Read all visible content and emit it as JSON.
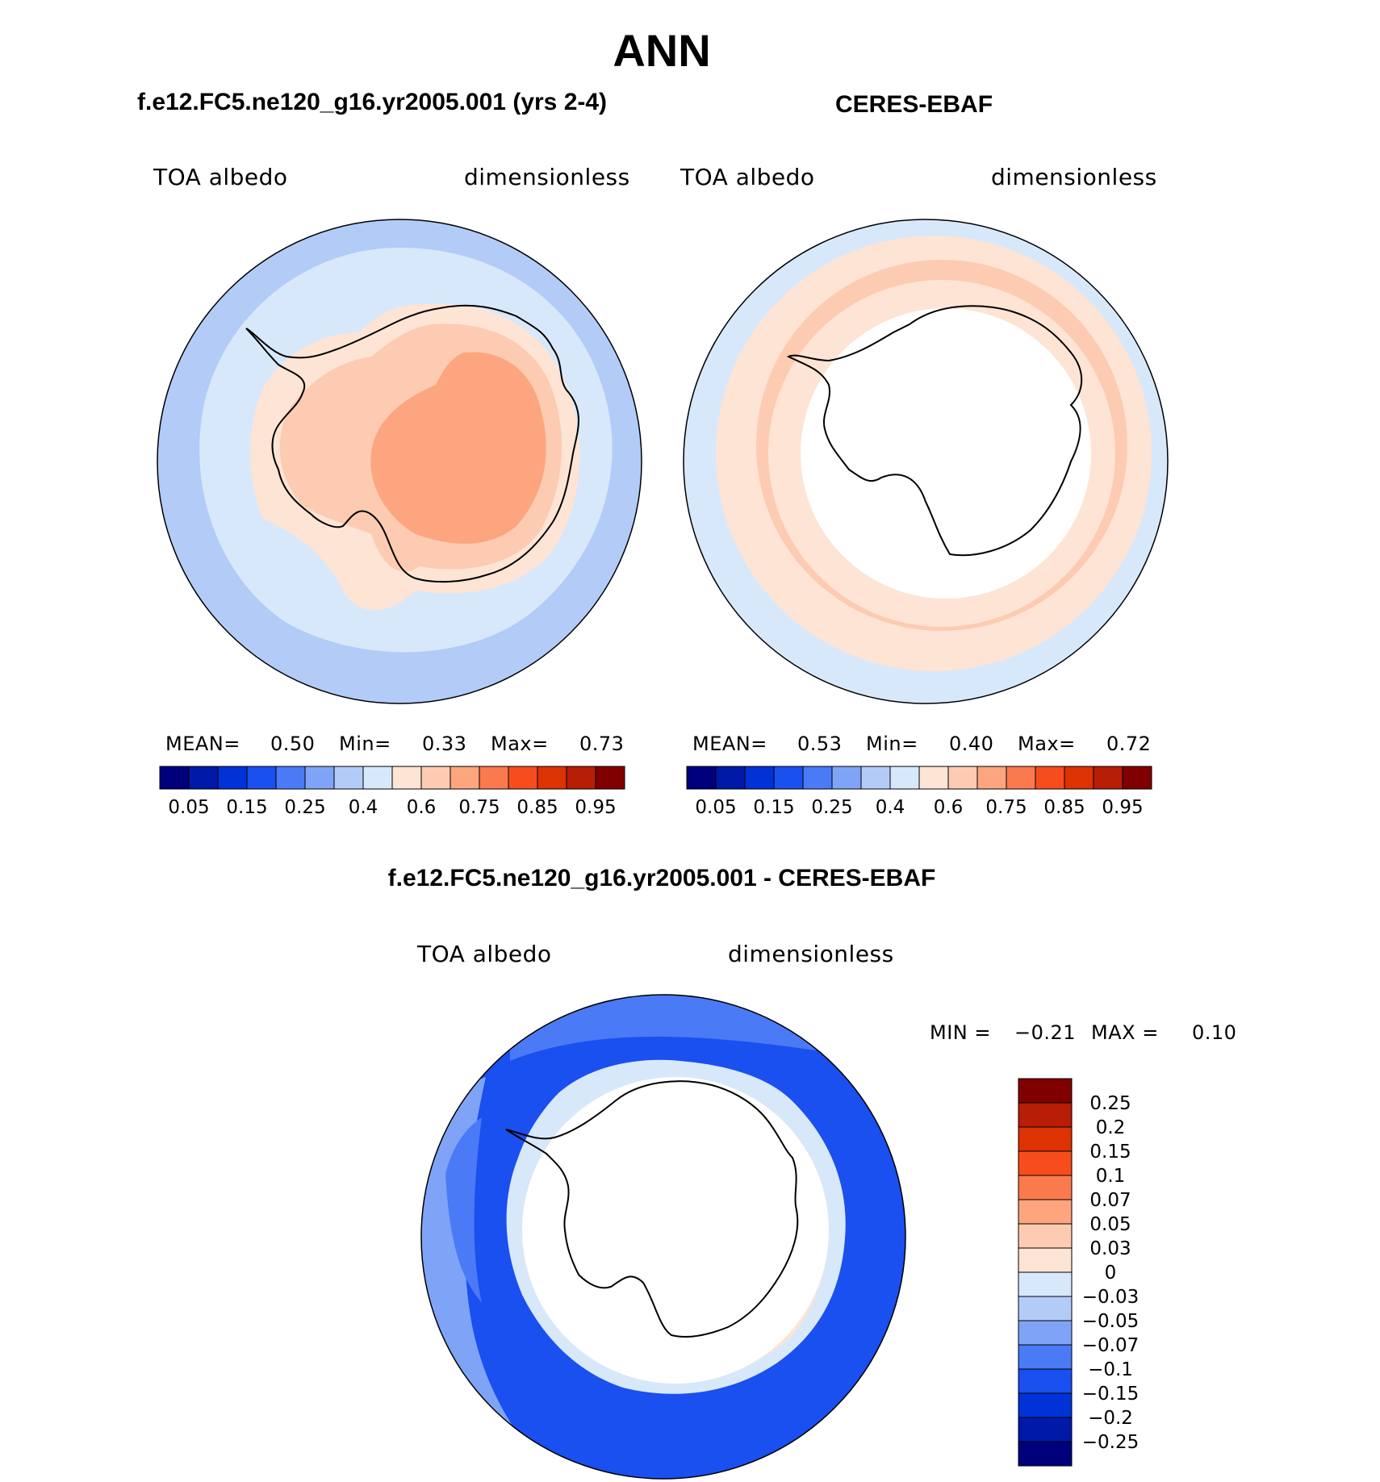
{
  "title": "ANN",
  "panels": [
    {
      "title": "f.e12.FC5.ne120_g16.yr2005.001 (yrs 2-4)",
      "variable": "TOA albedo",
      "units": "dimensionless",
      "stats": {
        "mean_label": "MEAN=",
        "mean": "0.50",
        "min_label": "Min=",
        "min": "0.33",
        "max_label": "Max=",
        "max": "0.73"
      }
    },
    {
      "title": "CERES-EBAF",
      "variable": "TOA albedo",
      "units": "dimensionless",
      "stats": {
        "mean_label": "MEAN=",
        "mean": "0.53",
        "min_label": "Min=",
        "min": "0.40",
        "max_label": "Max=",
        "max": "0.72"
      }
    },
    {
      "title": "f.e12.FC5.ne120_g16.yr2005.001 - CERES-EBAF",
      "variable": "TOA albedo",
      "units": "dimensionless",
      "stats": {
        "min_label": "MIN =",
        "min": "−0.21",
        "max_label": "MAX =",
        "max": "0.10"
      }
    }
  ],
  "colorbar_top": {
    "colors": [
      "#00007d",
      "#0019a8",
      "#0032d8",
      "#1a4ff0",
      "#4a7af5",
      "#7fa4f7",
      "#b3cbf7",
      "#d8e8fb",
      "#fde4d4",
      "#fccbb2",
      "#fca57f",
      "#fa7a4e",
      "#f74d1c",
      "#dd3202",
      "#b81d06",
      "#800000"
    ],
    "tick_labels": [
      "0.05",
      "0.15",
      "0.25",
      "0.4",
      "0.6",
      "0.75",
      "0.85",
      "0.95"
    ]
  },
  "colorbar_diff": {
    "colors": [
      "#00007d",
      "#0019a8",
      "#0032d8",
      "#1a4ff0",
      "#4a7af5",
      "#7fa4f7",
      "#b3cbf7",
      "#d8e8fb",
      "#fde4d4",
      "#fccbb2",
      "#fca57f",
      "#fa7a4e",
      "#f74d1c",
      "#dd3202",
      "#b81d06",
      "#800000"
    ],
    "tick_labels": [
      "0.25",
      "0.2",
      "0.15",
      "0.1",
      "0.07",
      "0.05",
      "0.03",
      "0",
      "−0.03",
      "−0.05",
      "−0.07",
      "−0.1",
      "−0.15",
      "−0.2",
      "−0.25"
    ]
  },
  "chart_data": [
    {
      "type": "heatmap",
      "title": "f.e12.FC5.ne120_g16.yr2005.001 (yrs 2-4)",
      "projection": "south polar stereographic",
      "variable": "TOA albedo",
      "units": "dimensionless",
      "mean": 0.5,
      "min": 0.33,
      "max": 0.73,
      "contour_levels": [
        0.05,
        0.1,
        0.15,
        0.2,
        0.25,
        0.3,
        0.35,
        0.4,
        0.5,
        0.6,
        0.65,
        0.7,
        0.75,
        0.8,
        0.85,
        0.9,
        0.95
      ]
    },
    {
      "type": "heatmap",
      "title": "CERES-EBAF",
      "projection": "south polar stereographic",
      "variable": "TOA albedo",
      "units": "dimensionless",
      "mean": 0.53,
      "min": 0.4,
      "max": 0.72,
      "contour_levels": [
        0.05,
        0.1,
        0.15,
        0.2,
        0.25,
        0.3,
        0.35,
        0.4,
        0.5,
        0.6,
        0.65,
        0.7,
        0.75,
        0.8,
        0.85,
        0.9,
        0.95
      ]
    },
    {
      "type": "heatmap",
      "title": "f.e12.FC5.ne120_g16.yr2005.001 - CERES-EBAF",
      "projection": "south polar stereographic",
      "variable": "TOA albedo",
      "units": "dimensionless",
      "min": -0.21,
      "max": 0.1,
      "contour_levels": [
        -0.25,
        -0.2,
        -0.15,
        -0.1,
        -0.07,
        -0.05,
        -0.03,
        0,
        0.03,
        0.05,
        0.07,
        0.1,
        0.15,
        0.2,
        0.25
      ]
    }
  ]
}
